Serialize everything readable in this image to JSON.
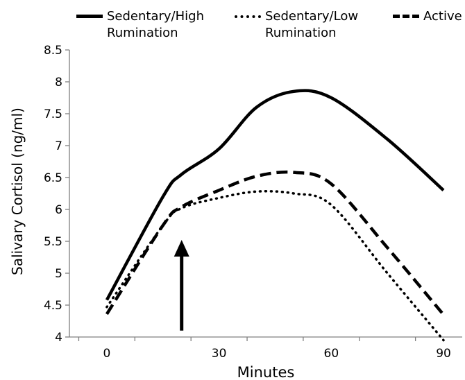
{
  "chart_data": {
    "type": "line",
    "xlabel": "Minutes",
    "ylabel": "Salivary Cortisol (ng/ml)",
    "xlim": [
      -10,
      95
    ],
    "ylim": [
      4,
      8.5
    ],
    "x_ticks": [
      "0",
      "30",
      "60",
      "90"
    ],
    "y_ticks": [
      "4",
      "4.5",
      "5",
      "5.5",
      "6",
      "6.5",
      "7",
      "7.5",
      "8",
      "8.5"
    ],
    "series": [
      {
        "name": "Sedentary/High Rumination",
        "style": "solid",
        "x": [
          0,
          15,
          20,
          30,
          40,
          50,
          60,
          75,
          90
        ],
        "y": [
          4.58,
          6.2,
          6.55,
          6.95,
          7.6,
          7.85,
          7.75,
          7.1,
          6.3
        ]
      },
      {
        "name": "Sedentary/Low Rumination",
        "style": "dotted",
        "x": [
          0,
          15,
          20,
          30,
          40,
          50,
          60,
          75,
          90
        ],
        "y": [
          4.47,
          5.75,
          6.02,
          6.18,
          6.28,
          6.25,
          6.07,
          5.0,
          3.95
        ]
      },
      {
        "name": "Active",
        "style": "dashed",
        "x": [
          0,
          15,
          20,
          30,
          40,
          50,
          60,
          75,
          90
        ],
        "y": [
          4.36,
          5.75,
          6.04,
          6.3,
          6.52,
          6.58,
          6.4,
          5.4,
          4.35
        ]
      }
    ],
    "annotation_arrow": {
      "x": 20,
      "y_from": 4.1,
      "y_to": 5.5
    },
    "colors": {
      "line": "#000000",
      "axis": "#808080"
    },
    "legend_position": "top"
  }
}
